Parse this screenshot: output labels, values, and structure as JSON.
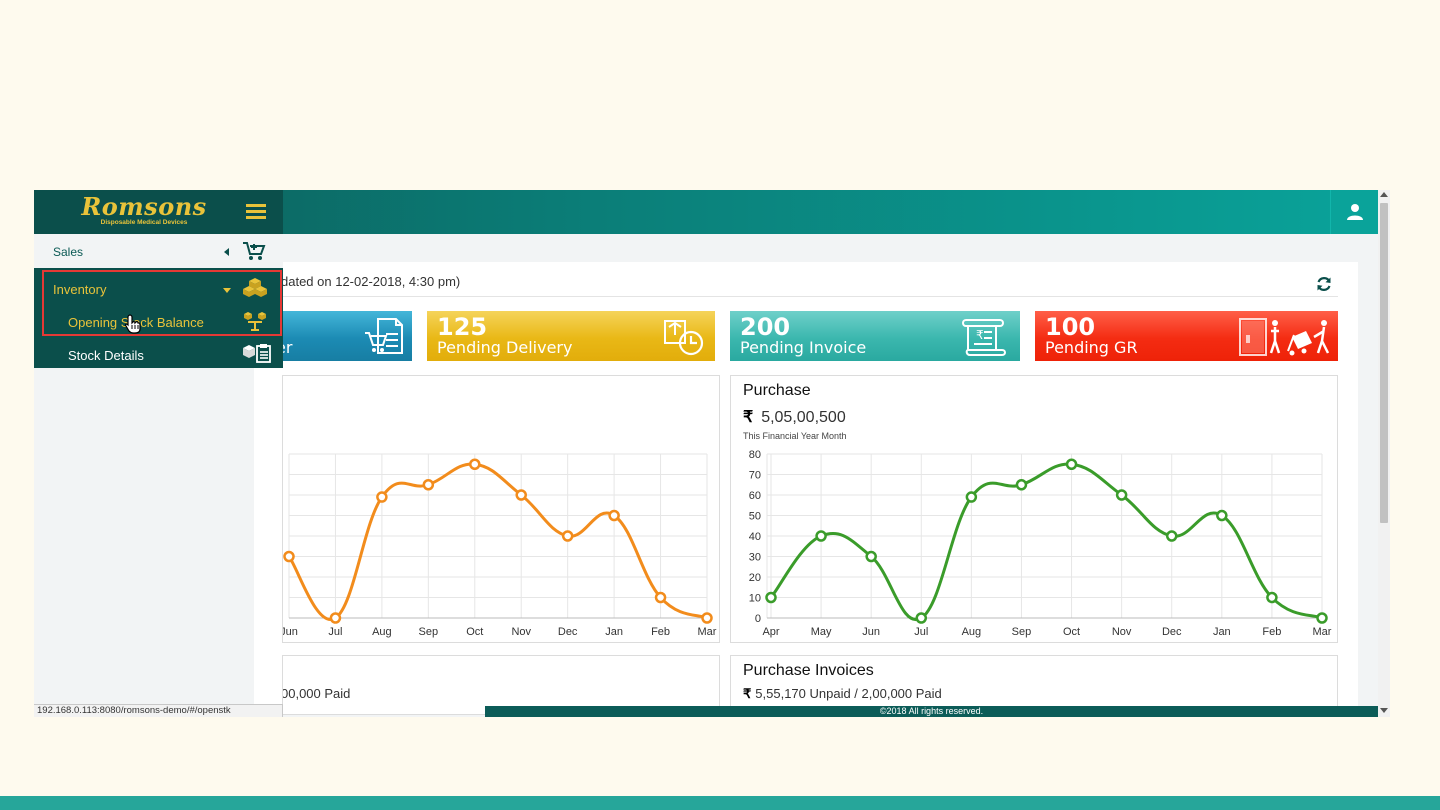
{
  "app": {
    "brand": {
      "name": "Romsons",
      "tagline": "Disposable Medical Devices",
      "gold": "#e9c33a",
      "teal_dark": "#0b4f4b"
    },
    "header": {
      "menu_icon": "hamburger-icon",
      "user_icon": "user-icon"
    }
  },
  "sidebar": {
    "sales": {
      "label": "Sales",
      "icon": "cart-icon"
    },
    "inventory": {
      "label": "Inventory",
      "icon": "boxes-icon",
      "items": [
        {
          "label": "Opening Stock Balance",
          "icon": "stock-balance-icon"
        },
        {
          "label": "Stock Details",
          "icon": "stock-details-icon"
        }
      ]
    }
  },
  "dashboard": {
    "updated_text": "dated on 12-02-2018, 4:30 pm)",
    "refresh_icon": "refresh-icon",
    "stats": [
      {
        "number": "",
        "label": "er",
        "icon": "order-icon",
        "color": "#1c8bb4"
      },
      {
        "number": "125",
        "label": "Pending Delivery",
        "icon": "delivery-clock-icon",
        "color": "#e9b816"
      },
      {
        "number": "200",
        "label": "Pending Invoice",
        "icon": "invoice-scroll-icon",
        "color": "#3bb7ae"
      },
      {
        "number": "100",
        "label": "Pending GR",
        "icon": "goods-receipt-icon",
        "color": "#f42c12"
      }
    ],
    "purchase_panel": {
      "title": "Purchase",
      "currency": "₹",
      "amount": "5,05,00,500",
      "subtitle": "This Financial Year Month"
    },
    "invoices_left": {
      "currency": "",
      "summary": "00,000 Paid"
    },
    "invoices_right": {
      "title": "Purchase Invoices",
      "currency": "₹",
      "summary": "5,55,170 Unpaid / 2,00,000 Paid"
    },
    "footer": "©2018 All rights reserved.",
    "status_url": "192.168.0.113:8080/romsons-demo/#/openstk"
  },
  "chart_data": [
    {
      "type": "line",
      "color": "#f28c1c",
      "categories": [
        "Jun",
        "Jul",
        "Aug",
        "Sep",
        "Oct",
        "Nov",
        "Dec",
        "Jan",
        "Feb",
        "Mar"
      ],
      "values": [
        30,
        0,
        59,
        65,
        75,
        60,
        40,
        50,
        10,
        0
      ],
      "ylim": [
        0,
        80
      ],
      "grid": true
    },
    {
      "type": "line",
      "color": "#3a9c2a",
      "categories": [
        "Apr",
        "May",
        "Jun",
        "Jul",
        "Aug",
        "Sep",
        "Oct",
        "Nov",
        "Dec",
        "Jan",
        "Feb",
        "Mar"
      ],
      "values": [
        10,
        40,
        30,
        0,
        59,
        65,
        75,
        60,
        40,
        50,
        10,
        0
      ],
      "ylim": [
        0,
        80
      ],
      "yticks": [
        0,
        10,
        20,
        30,
        40,
        50,
        60,
        70,
        80
      ],
      "grid": true
    }
  ]
}
